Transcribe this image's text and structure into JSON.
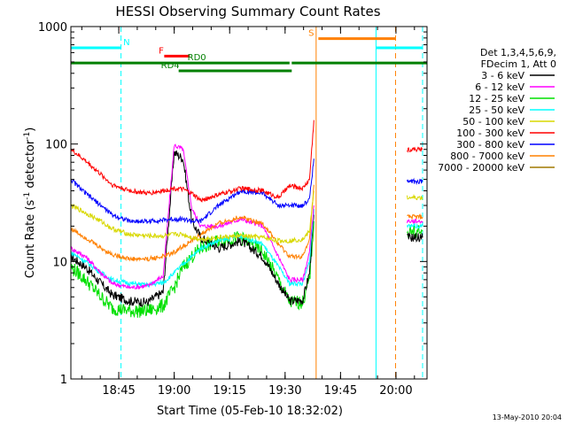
{
  "chart_data": {
    "type": "line",
    "title": "HESSI Observing Summary Count Rates",
    "xlabel": "Start Time (05-Feb-10 18:32:02)",
    "ylabel_main": "Count Rate (s",
    "ylabel_sup1": "-1",
    "ylabel_mid": " detector",
    "ylabel_sup2": "-1",
    "ylabel_end": ")",
    "y_scale": "log",
    "ylim": [
      1,
      1000
    ],
    "xlim": [
      18.534,
      20.14
    ],
    "x_ticks": [
      {
        "value": 18.75,
        "label": "18:45"
      },
      {
        "value": 19.0,
        "label": "19:00"
      },
      {
        "value": 19.25,
        "label": "19:15"
      },
      {
        "value": 19.5,
        "label": "19:30"
      },
      {
        "value": 19.75,
        "label": "19:45"
      },
      {
        "value": 20.0,
        "label": "20:00"
      }
    ],
    "y_ticks": [
      {
        "value": 1,
        "label": "1"
      },
      {
        "value": 10,
        "label": "10"
      },
      {
        "value": 100,
        "label": "100"
      },
      {
        "value": 1000,
        "label": "1000"
      }
    ],
    "legend_header": [
      "Det 1,3,4,5,6,9,",
      "FDecim 1, Att 0"
    ],
    "legend_placement": "right",
    "timestamp": "13-May-2010 20:04",
    "series": [
      {
        "name": "3 - 6 keV",
        "color": "#000000",
        "x": [
          18.534,
          18.6,
          18.67,
          18.72,
          18.8,
          18.88,
          18.95,
          19.0,
          19.04,
          19.08,
          19.12,
          19.2,
          19.3,
          19.4,
          19.47,
          19.52,
          19.58,
          19.61,
          19.63
        ],
        "y": [
          11,
          9,
          6.5,
          5.2,
          4.6,
          4.5,
          5.5,
          85,
          75,
          22,
          16,
          13,
          15,
          11,
          6.5,
          4.6,
          4.7,
          8,
          25
        ],
        "x2": [
          20.05,
          20.12
        ],
        "y2": [
          16,
          16
        ]
      },
      {
        "name": "6 - 12 keV",
        "color": "#ff00ff",
        "x": [
          18.534,
          18.6,
          18.67,
          18.72,
          18.8,
          18.88,
          18.95,
          19.0,
          19.04,
          19.08,
          19.12,
          19.2,
          19.3,
          19.4,
          19.47,
          19.52,
          19.58,
          19.61,
          19.63
        ],
        "y": [
          13,
          11,
          8,
          6.5,
          6,
          6.2,
          7.5,
          98,
          90,
          28,
          20,
          20,
          23,
          20,
          11,
          7,
          7,
          12,
          30
        ],
        "x2": [
          20.05,
          20.12
        ],
        "y2": [
          22,
          22
        ]
      },
      {
        "name": "12 - 25 keV",
        "color": "#00e000",
        "x": [
          18.534,
          18.6,
          18.67,
          18.72,
          18.8,
          18.88,
          18.95,
          19.0,
          19.04,
          19.08,
          19.12,
          19.2,
          19.3,
          19.4,
          19.47,
          19.52,
          19.58,
          19.61,
          19.63
        ],
        "y": [
          9,
          7,
          5,
          4,
          3.8,
          3.8,
          4.2,
          6,
          9,
          11,
          13,
          15,
          16,
          12,
          7,
          4.5,
          4.5,
          7,
          22
        ],
        "x2": [
          20.05,
          20.12
        ],
        "y2": [
          18,
          18
        ]
      },
      {
        "name": "25 - 50 keV",
        "color": "#00ffff",
        "x": [
          18.534,
          18.6,
          18.67,
          18.72,
          18.8,
          18.88,
          18.95,
          19.0,
          19.04,
          19.08,
          19.12,
          19.2,
          19.3,
          19.4,
          19.47,
          19.52,
          19.58,
          19.61,
          19.63
        ],
        "y": [
          12,
          10,
          8,
          7,
          6.5,
          6.3,
          6.6,
          8,
          9.5,
          11,
          13,
          15,
          16.5,
          14,
          9,
          6.5,
          6.5,
          10,
          28
        ],
        "x2": [
          20.05,
          20.12
        ],
        "y2": [
          20,
          20
        ]
      },
      {
        "name": "50 - 100 keV",
        "color": "#d8d800",
        "x": [
          18.534,
          18.6,
          18.67,
          18.72,
          18.8,
          18.88,
          18.95,
          19.0,
          19.04,
          19.08,
          19.12,
          19.2,
          19.3,
          19.4,
          19.47,
          19.52,
          19.58,
          19.61,
          19.63
        ],
        "y": [
          30,
          26,
          22,
          19,
          17,
          16.5,
          16.5,
          17,
          17,
          16,
          15.5,
          16,
          16.5,
          16,
          15,
          15,
          15.5,
          18,
          40
        ],
        "x2": [
          20.05,
          20.12
        ],
        "y2": [
          35,
          35
        ]
      },
      {
        "name": "100 - 300 keV",
        "color": "#ff0000",
        "x": [
          18.534,
          18.6,
          18.67,
          18.72,
          18.8,
          18.88,
          18.95,
          19.0,
          19.04,
          19.08,
          19.12,
          19.2,
          19.3,
          19.4,
          19.47,
          19.52,
          19.58,
          19.61,
          19.63
        ],
        "y": [
          90,
          72,
          55,
          45,
          40,
          38,
          40,
          42,
          41,
          38,
          33,
          37,
          42,
          40,
          35,
          44,
          42,
          50,
          160
        ],
        "x2": [
          20.05,
          20.12
        ],
        "y2": [
          90,
          90
        ]
      },
      {
        "name": "300 - 800 keV",
        "color": "#0000ff",
        "x": [
          18.534,
          18.6,
          18.67,
          18.72,
          18.8,
          18.88,
          18.95,
          19.0,
          19.04,
          19.08,
          19.12,
          19.2,
          19.3,
          19.4,
          19.47,
          19.52,
          19.58,
          19.61,
          19.63
        ],
        "y": [
          50,
          38,
          30,
          25,
          22,
          22,
          22.5,
          23,
          23,
          22,
          22,
          30,
          40,
          38,
          30,
          30,
          30,
          34,
          75
        ],
        "x2": [
          20.05,
          20.12
        ],
        "y2": [
          48,
          48
        ]
      },
      {
        "name": "800 - 7000 keV",
        "color": "#ff8000",
        "x": [
          18.534,
          18.6,
          18.67,
          18.72,
          18.8,
          18.88,
          18.95,
          19.0,
          19.04,
          19.08,
          19.12,
          19.2,
          19.3,
          19.4,
          19.47,
          19.52,
          19.58,
          19.61,
          19.63
        ],
        "y": [
          19,
          16,
          13,
          11.5,
          10.5,
          10.5,
          11,
          12,
          13.5,
          15,
          17,
          21,
          24,
          21,
          14,
          11,
          11,
          15,
          45
        ],
        "x2": [
          20.05,
          20.12
        ],
        "y2": [
          24,
          24
        ]
      },
      {
        "name": "7000 - 20000 keV",
        "color": "#a07800",
        "x": [],
        "y": []
      }
    ],
    "markers": {
      "vertical_lines": [
        {
          "x": 18.534,
          "color": "#00ffff",
          "dash": false
        },
        {
          "x": 18.76,
          "color": "#00ffff",
          "dash": true
        },
        {
          "x": 19.64,
          "color": "#ff8000",
          "dash": false
        },
        {
          "x": 19.91,
          "color": "#00ffff",
          "dash": false
        },
        {
          "x": 19.998,
          "color": "#ff8000",
          "dash": true
        },
        {
          "x": 20.12,
          "color": "#00ffff",
          "dash": true
        }
      ],
      "bars": [
        {
          "label": "N",
          "color": "#00ffff",
          "x0": 18.534,
          "x1": 18.76,
          "y": 660,
          "label_x": 18.77
        },
        {
          "label": "",
          "color": "#00ffff",
          "x0": 19.91,
          "x1": 20.12,
          "y": 660,
          "label_x": null
        },
        {
          "label": "S",
          "color": "#ff8000",
          "x0": 19.65,
          "x1": 19.998,
          "y": 790,
          "label_x": 19.605
        },
        {
          "label": "F",
          "color": "#ff0000",
          "x0": 18.955,
          "x1": 19.07,
          "y": 560,
          "label_x": 18.93
        },
        {
          "label": "RD0",
          "color": "#008000",
          "x0": 18.534,
          "x1": 19.52,
          "y": 490,
          "label_x": 19.06
        },
        {
          "label": "RD4",
          "color": "#008000",
          "x0": 19.02,
          "x1": 19.53,
          "y": 420,
          "label_x": 18.94
        },
        {
          "label": "",
          "color": "#008000",
          "x0": 19.53,
          "x1": 20.14,
          "y": 490,
          "label_x": null
        }
      ]
    }
  }
}
